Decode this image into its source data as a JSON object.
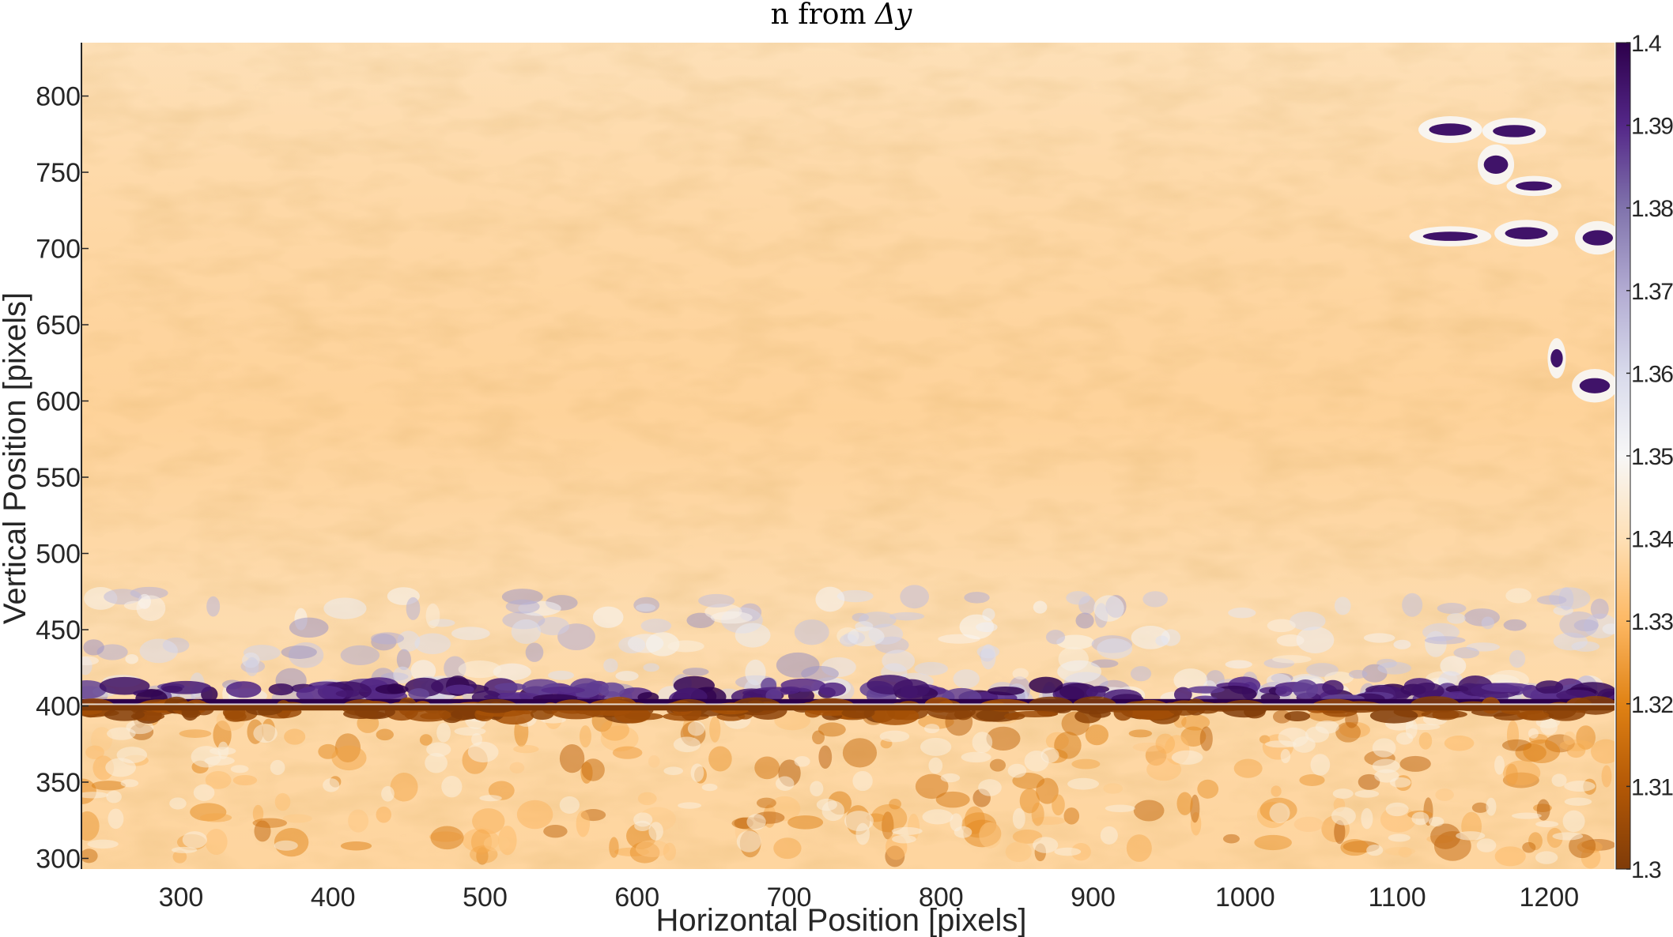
{
  "chart_data": {
    "type": "heatmap",
    "title_text": "n from ",
    "title_math": "Δy",
    "xlabel": "Horizontal Position [pixels]",
    "ylabel": "Vertical Position [pixels]",
    "xlim": [
      235,
      1243
    ],
    "ylim": [
      293,
      835
    ],
    "xticks": [
      300,
      400,
      500,
      600,
      700,
      800,
      900,
      1000,
      1100,
      1200
    ],
    "yticks": [
      300,
      350,
      400,
      450,
      500,
      550,
      600,
      650,
      700,
      750,
      800
    ],
    "colorbar": {
      "ticks": [
        "1.3",
        "1.31",
        "1.32",
        "1.33",
        "1.34",
        "1.35",
        "1.36",
        "1.37",
        "1.38",
        "1.39",
        "1.4"
      ],
      "range": [
        1.3,
        1.4
      ],
      "colormap": "PuOr",
      "colors": [
        "#7f3b08",
        "#b35806",
        "#e08214",
        "#fdb863",
        "#fee0b6",
        "#f7f7f7",
        "#d8daeb",
        "#b2abd2",
        "#8073ac",
        "#542788",
        "#2d004b"
      ]
    },
    "field_description": {
      "background_value": 1.337,
      "band_upper_value": 1.4,
      "band_lower_value": 1.3,
      "band_center_y": 401
    }
  }
}
